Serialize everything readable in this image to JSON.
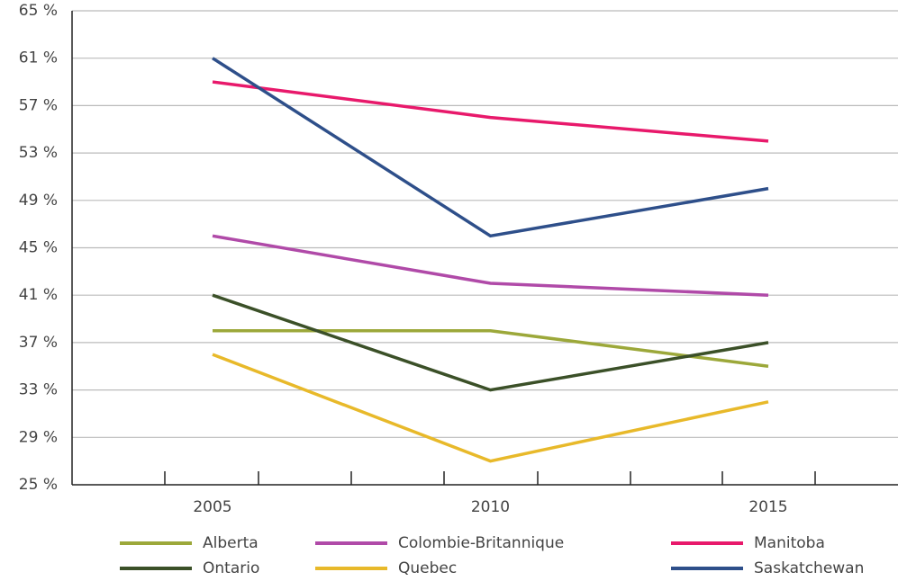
{
  "chart_data": {
    "type": "line",
    "categories": [
      "2005",
      "2010",
      "2015"
    ],
    "series": [
      {
        "name": "Alberta",
        "color": "#9ca83a",
        "values": [
          38,
          38,
          35
        ]
      },
      {
        "name": "Colombie-Britannique",
        "color": "#b04aa8",
        "values": [
          46,
          42,
          41
        ]
      },
      {
        "name": "Manitoba",
        "color": "#e8196b",
        "values": [
          59,
          56,
          54
        ]
      },
      {
        "name": "Ontario",
        "color": "#3b5028",
        "values": [
          41,
          33,
          37
        ]
      },
      {
        "name": "Quebec",
        "color": "#e8b92a",
        "values": [
          36,
          27,
          32
        ]
      },
      {
        "name": "Saskatchewan",
        "color": "#2e4f8a",
        "values": [
          61,
          46,
          50
        ]
      }
    ],
    "ylim": [
      25,
      65
    ],
    "yticks": [
      {
        "value": 25,
        "label": "25 %"
      },
      {
        "value": 29,
        "label": "29 %"
      },
      {
        "value": 33,
        "label": "33 %"
      },
      {
        "value": 37,
        "label": "37 %"
      },
      {
        "value": 41,
        "label": "41 %"
      },
      {
        "value": 45,
        "label": "45 %"
      },
      {
        "value": 49,
        "label": "49 %"
      },
      {
        "value": 53,
        "label": "53 %"
      },
      {
        "value": 57,
        "label": "57 %"
      },
      {
        "value": 61,
        "label": "61 %"
      },
      {
        "value": 65,
        "label": "65 %"
      }
    ],
    "grid": true,
    "legend": "bottom"
  }
}
